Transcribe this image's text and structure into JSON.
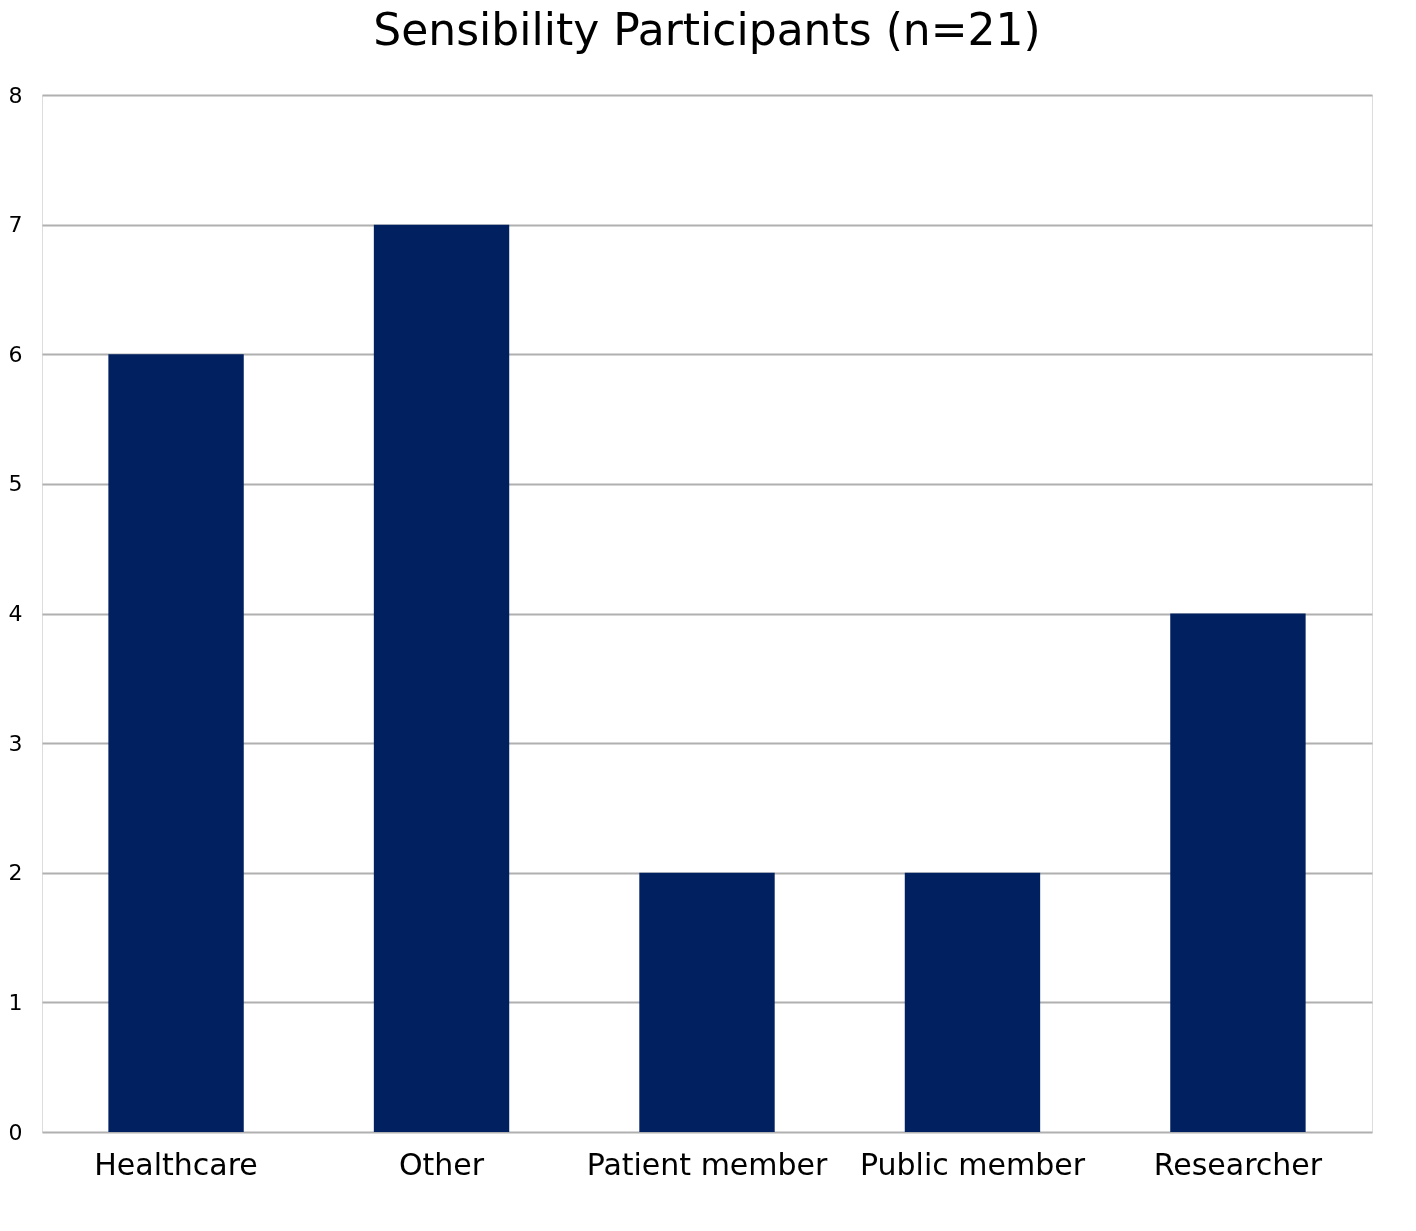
{
  "chart_data": {
    "type": "bar",
    "title": "Sensibility Participants (n=21)",
    "categories": [
      "Healthcare",
      "Other",
      "Patient member",
      "Public member",
      "Researcher"
    ],
    "values": [
      6,
      7,
      2,
      2,
      4
    ],
    "color": "#002060",
    "ylim": [
      0,
      8
    ],
    "yticks": [
      0,
      1,
      2,
      3,
      4,
      5,
      6,
      7,
      8
    ],
    "grid": "y"
  }
}
